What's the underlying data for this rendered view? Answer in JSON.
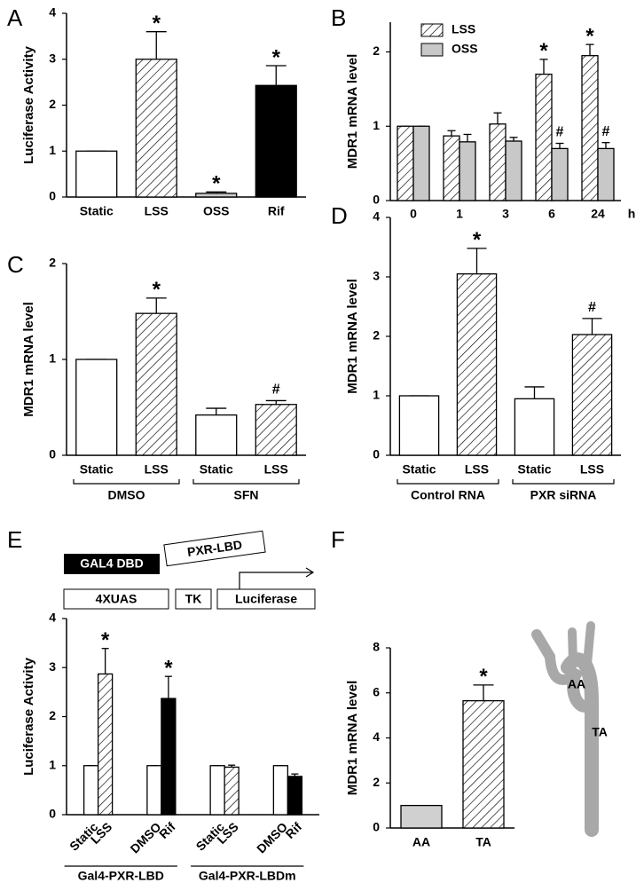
{
  "chart_data": [
    {
      "type": "bar",
      "panel": "A",
      "ylabel": "Luciferase Activity",
      "categories": [
        "Static",
        "LSS",
        "OSS",
        "Rif"
      ],
      "values": [
        1,
        3.0,
        0.08,
        2.43
      ],
      "errors": [
        0,
        0.6,
        0.03,
        0.43
      ],
      "fills": [
        "#ffffff",
        "hatch",
        "#c8c8c8",
        "#000000"
      ],
      "annotations": [
        null,
        "*",
        "*",
        "*"
      ],
      "ylim": [
        0,
        4
      ],
      "yticks": [
        0,
        1,
        2,
        3,
        4
      ]
    },
    {
      "type": "grouped-bar",
      "panel": "B",
      "ylabel": "MDR1 mRNA level",
      "xlabel": "h",
      "categories": [
        "0",
        "1",
        "3",
        "6",
        "24"
      ],
      "legend": "upper left",
      "series": [
        {
          "name": "LSS",
          "fill": "hatch",
          "values": [
            1,
            0.87,
            1.03,
            1.7,
            1.95
          ],
          "errors": [
            0,
            0.07,
            0.15,
            0.2,
            0.15
          ],
          "annotations": [
            null,
            null,
            null,
            "*",
            "*"
          ]
        },
        {
          "name": "OSS",
          "fill": "#c8c8c8",
          "values": [
            1,
            0.79,
            0.8,
            0.7,
            0.7
          ],
          "errors": [
            0,
            0.1,
            0.05,
            0.07,
            0.08
          ],
          "annotations": [
            null,
            null,
            null,
            "#",
            "#"
          ]
        }
      ],
      "ylim": [
        0,
        2.4
      ],
      "yticks": [
        0,
        1,
        2
      ]
    },
    {
      "type": "bar",
      "panel": "C",
      "ylabel": "MDR1 mRNA level",
      "categories": [
        "Static",
        "LSS",
        "Static",
        "LSS"
      ],
      "groups": [
        "DMSO",
        "SFN"
      ],
      "values": [
        1,
        1.48,
        0.42,
        0.53
      ],
      "errors": [
        0,
        0.16,
        0.07,
        0.04
      ],
      "fills": [
        "#ffffff",
        "hatch",
        "#ffffff",
        "hatch"
      ],
      "annotations": [
        null,
        "*",
        null,
        "#"
      ],
      "ylim": [
        0,
        2
      ],
      "yticks": [
        0,
        1,
        2
      ]
    },
    {
      "type": "bar",
      "panel": "D",
      "ylabel": "MDR1 mRNA level",
      "categories": [
        "Static",
        "LSS",
        "Static",
        "LSS"
      ],
      "groups": [
        "Control RNA",
        "PXR siRNA"
      ],
      "values": [
        1,
        3.05,
        0.95,
        2.03
      ],
      "errors": [
        0,
        0.43,
        0.2,
        0.27
      ],
      "fills": [
        "#ffffff",
        "hatch",
        "#ffffff",
        "hatch"
      ],
      "annotations": [
        null,
        "*",
        null,
        "#"
      ],
      "ylim": [
        0,
        4
      ],
      "yticks": [
        0,
        1,
        2,
        3,
        4
      ]
    },
    {
      "type": "paired-bar",
      "panel": "E",
      "ylabel": "Luciferase Activity",
      "diagram": [
        "GAL4 DBD",
        "PXR-LBD",
        "4XUAS",
        "TK",
        "Luciferase"
      ],
      "categories": [
        "Static",
        "LSS",
        "DMSO",
        "Rif",
        "Static",
        "LSS",
        "DMSO",
        "Rif"
      ],
      "groups": [
        "Gal4-PXR-LBD",
        "Gal4-PXR-LBDm"
      ],
      "values": [
        1,
        2.87,
        1,
        2.37,
        1,
        0.97,
        1,
        0.78
      ],
      "errors": [
        0,
        0.52,
        0,
        0.45,
        0,
        0.04,
        0,
        0.05
      ],
      "fills": [
        "#ffffff",
        "hatch",
        "#ffffff",
        "#000000",
        "#ffffff",
        "hatch",
        "#ffffff",
        "#000000"
      ],
      "annotations": [
        null,
        "*",
        null,
        "*",
        null,
        null,
        null,
        null
      ],
      "ylim": [
        0,
        4
      ],
      "yticks": [
        0,
        1,
        2,
        3,
        4
      ]
    },
    {
      "type": "bar",
      "panel": "F",
      "ylabel": "MDR1 mRNA level",
      "diagram": [
        "AA",
        "TA"
      ],
      "categories": [
        "AA",
        "TA"
      ],
      "values": [
        1,
        5.65
      ],
      "errors": [
        0,
        0.7
      ],
      "fills": [
        "#d0d0d0",
        "hatch"
      ],
      "annotations": [
        null,
        "*"
      ],
      "ylim": [
        0,
        8
      ],
      "yticks": [
        0,
        2,
        4,
        6,
        8
      ]
    }
  ]
}
